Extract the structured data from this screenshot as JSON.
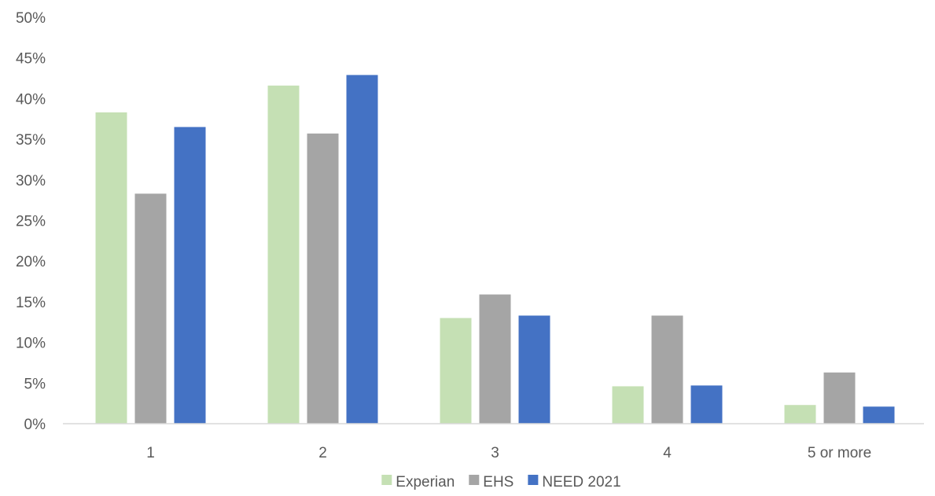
{
  "chart_data": {
    "type": "bar",
    "title": "",
    "xlabel": "",
    "ylabel": "",
    "categories": [
      "1",
      "2",
      "3",
      "4",
      "5 or more"
    ],
    "series": [
      {
        "name": "Experian",
        "color": "#c5e0b4",
        "values": [
          38.3,
          41.6,
          13.0,
          4.6,
          2.3
        ]
      },
      {
        "name": "EHS",
        "color": "#a5a5a5",
        "values": [
          28.3,
          35.7,
          15.9,
          13.3,
          6.3
        ]
      },
      {
        "name": "NEED 2021",
        "color": "#4472c4",
        "values": [
          36.5,
          42.9,
          13.3,
          4.7,
          2.1
        ]
      }
    ],
    "ylim": [
      0,
      50
    ],
    "yticks": [
      "0%",
      "5%",
      "10%",
      "15%",
      "20%",
      "25%",
      "30%",
      "35%",
      "40%",
      "45%",
      "50%"
    ],
    "grid": false,
    "legend_position": "bottom"
  }
}
